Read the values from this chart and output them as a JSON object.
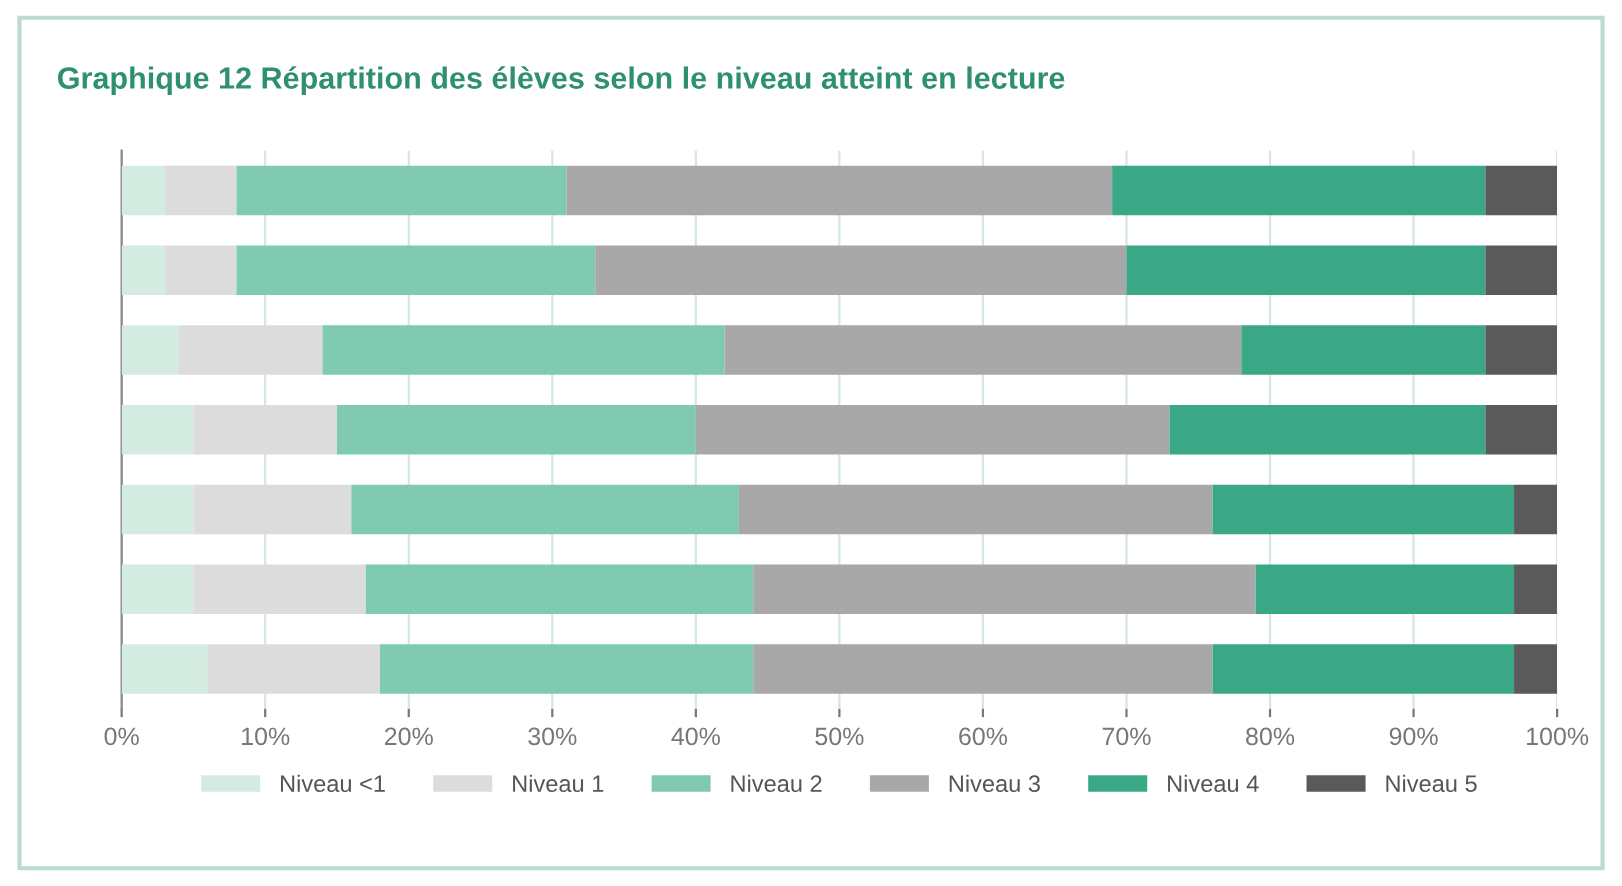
{
  "chart_data": {
    "type": "bar",
    "orientation": "horizontal",
    "stacked": true,
    "title": "Graphique 12 Répartition des élèves selon le niveau atteint en lecture",
    "categories": [
      null,
      null,
      null,
      null,
      null,
      null,
      null
    ],
    "series": [
      {
        "name": "Niveau <1",
        "color": "#d3ebe1",
        "values": [
          3,
          3,
          4,
          5,
          5,
          5,
          6
        ]
      },
      {
        "name": "Niveau 1",
        "color": "#dcdcdc",
        "values": [
          5,
          5,
          10,
          10,
          11,
          12,
          12
        ]
      },
      {
        "name": "Niveau 2",
        "color": "#7fcab0",
        "values": [
          23,
          25,
          28,
          25,
          27,
          27,
          26
        ]
      },
      {
        "name": "Niveau 3",
        "color": "#a8a8a8",
        "values": [
          38,
          37,
          36,
          33,
          33,
          35,
          32
        ]
      },
      {
        "name": "Niveau 4",
        "color": "#3aa887",
        "values": [
          26,
          25,
          17,
          22,
          21,
          18,
          21
        ]
      },
      {
        "name": "Niveau 5",
        "color": "#5a5a5a",
        "values": [
          5,
          5,
          5,
          5,
          3,
          3,
          3
        ]
      }
    ],
    "xlim": [
      0,
      100
    ],
    "xticks": [
      {
        "value": 0,
        "label": "0%"
      },
      {
        "value": 10,
        "label": "10%"
      },
      {
        "value": 20,
        "label": "20%"
      },
      {
        "value": 30,
        "label": "30%"
      },
      {
        "value": 40,
        "label": "40%"
      },
      {
        "value": 50,
        "label": "50%"
      },
      {
        "value": 60,
        "label": "60%"
      },
      {
        "value": 70,
        "label": "70%"
      },
      {
        "value": 80,
        "label": "80%"
      },
      {
        "value": 90,
        "label": "90%"
      },
      {
        "value": 100,
        "label": "100%"
      }
    ],
    "grid": "x",
    "legend": "bottom"
  }
}
